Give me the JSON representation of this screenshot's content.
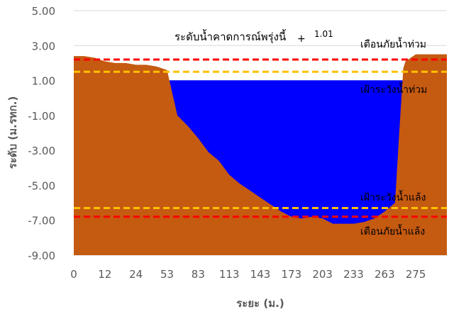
{
  "chart_data": {
    "type": "area",
    "title": "",
    "xlabel": "ระยะ (ม.)",
    "ylabel": "ระดับ (ม.รทก.)",
    "ylim": [
      -9,
      5
    ],
    "yticks": [
      "5.00",
      "3.00",
      "1.00",
      "-1.00",
      "-3.00",
      "-5.00",
      "-7.00",
      "-9.00"
    ],
    "xticks": [
      "0",
      "12",
      "24",
      "53",
      "83",
      "113",
      "143",
      "173",
      "203",
      "233",
      "263",
      "275"
    ],
    "grid": "horizontal",
    "legend": "none",
    "series": [
      {
        "kind": "ground",
        "color": "#C55A11",
        "points": [
          [
            0,
            2.4
          ],
          [
            1,
            2.4
          ],
          [
            2,
            2.3
          ],
          [
            3,
            2.1
          ],
          [
            4,
            2.0
          ],
          [
            5,
            2.0
          ],
          [
            6,
            1.9
          ],
          [
            7,
            1.9
          ],
          [
            8,
            1.8
          ],
          [
            9,
            1.6
          ],
          [
            10,
            -1.0
          ],
          [
            11,
            -1.6
          ],
          [
            12,
            -2.3
          ],
          [
            13,
            -3.1
          ],
          [
            14,
            -3.6
          ],
          [
            15,
            -4.4
          ],
          [
            16,
            -4.9
          ],
          [
            17,
            -5.3
          ],
          [
            18,
            -5.7
          ],
          [
            19,
            -6.1
          ],
          [
            20,
            -6.5
          ],
          [
            21,
            -6.8
          ],
          [
            22,
            -6.9
          ],
          [
            23,
            -6.8
          ],
          [
            24,
            -6.9
          ],
          [
            25,
            -7.2
          ],
          [
            26,
            -7.2
          ],
          [
            27,
            -7.2
          ],
          [
            28,
            -7.1
          ],
          [
            29,
            -6.9
          ],
          [
            30,
            -6.5
          ],
          [
            31,
            -6.0
          ],
          [
            31.4,
            -2.0
          ],
          [
            31.8,
            1.7
          ],
          [
            32,
            2.1
          ],
          [
            33,
            2.5
          ],
          [
            34,
            2.5
          ],
          [
            35,
            2.5
          ],
          [
            36,
            2.5
          ]
        ]
      },
      {
        "kind": "water",
        "color": "#0000FF",
        "level": 1.01
      }
    ],
    "reference_lines": [
      {
        "name": "เตือนภัยน้ำท่วม",
        "value": 2.2,
        "color": "#FF0000"
      },
      {
        "name": "เฝ้าระวังน้ำท่วม",
        "value": 1.5,
        "color": "#FFC000"
      },
      {
        "name": "เฝ้าระวังน้ำแล้ง",
        "value": -6.3,
        "color": "#FFC000"
      },
      {
        "name": "เตือนภัยน้ำแล้ง",
        "value": -6.8,
        "color": "#FF0000"
      }
    ],
    "annotations": {
      "forecast_label": "ระดับน้ำคาดการณ์พรุ่งนี้",
      "forecast_plus": "+",
      "forecast_value": "1.01"
    }
  }
}
